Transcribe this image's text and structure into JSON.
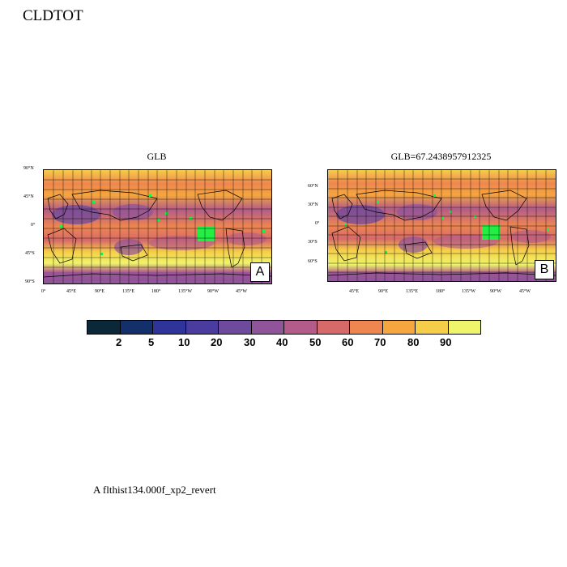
{
  "title": "CLDTOT",
  "panel_a": {
    "title": "GLB",
    "label": "A",
    "lat_ticks": [
      "90°N",
      "45°N",
      "0°",
      "45°S",
      "90°S"
    ],
    "lon_ticks": [
      "0°",
      "45°E",
      "90°E",
      "135°E",
      "180°",
      "135°W",
      "90°W",
      "45°W"
    ]
  },
  "panel_b": {
    "title": "GLB=67.2438957912325",
    "label": "B",
    "lat_ticks": [
      "60°N",
      "30°N",
      "0°",
      "30°S",
      "60°S"
    ],
    "lon_ticks": [
      "45°E",
      "90°E",
      "135°E",
      "180°",
      "135°W",
      "90°W",
      "45°W"
    ]
  },
  "colorbar": {
    "labels": [
      "2",
      "5",
      "10",
      "20",
      "30",
      "40",
      "50",
      "60",
      "70",
      "80",
      "90"
    ],
    "colors": [
      "#0b2838",
      "#13306a",
      "#2e349a",
      "#4a3b9e",
      "#6e4a9c",
      "#8f549a",
      "#b35c89",
      "#d66a6a",
      "#ee8650",
      "#f5a63e",
      "#f6cd48",
      "#eef56a"
    ]
  },
  "footer": "A  flthist134.000f_xp2_revert"
}
